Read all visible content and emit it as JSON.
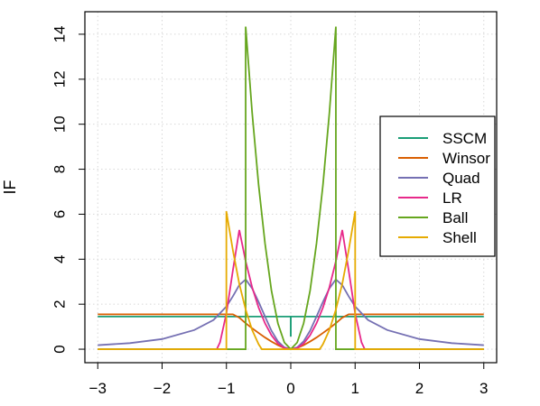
{
  "chart_data": {
    "type": "line",
    "title": "",
    "xlabel": "",
    "ylabel": "IF",
    "xlim": [
      -3.2,
      3.2
    ],
    "ylim": [
      -0.6,
      15
    ],
    "grid": true,
    "legend_position": "right",
    "x_ticks": [
      -3,
      -2,
      -1,
      0,
      1,
      2,
      3
    ],
    "y_ticks": [
      0,
      2,
      4,
      6,
      8,
      10,
      12,
      14
    ],
    "x_tick_labels": [
      "−3",
      "−2",
      "−1",
      "0",
      "1",
      "2",
      "3"
    ],
    "y_tick_labels": [
      "0",
      "2",
      "4",
      "6",
      "8",
      "10",
      "12",
      "14"
    ],
    "series": [
      {
        "name": "SSCM",
        "color": "#1b9e77",
        "x": [
          -3,
          -0.001,
          -0.001,
          0.001,
          0.001,
          3
        ],
        "y": [
          1.45,
          1.45,
          0.6,
          0.6,
          1.45,
          1.45
        ]
      },
      {
        "name": "Winsor",
        "color": "#d95f02",
        "x": [
          -3,
          -2,
          -1.5,
          -1.2,
          -1,
          -0.9,
          -0.8,
          -0.7,
          -0.6,
          -0.5,
          -0.4,
          -0.3,
          -0.2,
          -0.1,
          0,
          0.1,
          0.2,
          0.3,
          0.4,
          0.5,
          0.6,
          0.7,
          0.8,
          0.9,
          1,
          1.2,
          1.5,
          2,
          3
        ],
        "y": [
          1.55,
          1.55,
          1.55,
          1.55,
          1.55,
          1.55,
          1.4,
          1.15,
          0.93,
          0.72,
          0.52,
          0.34,
          0.18,
          0.05,
          0.0,
          0.05,
          0.18,
          0.34,
          0.52,
          0.72,
          0.93,
          1.15,
          1.4,
          1.55,
          1.55,
          1.55,
          1.55,
          1.55,
          1.55
        ]
      },
      {
        "name": "Quad",
        "color": "#7570b3",
        "x": [
          -3,
          -2.5,
          -2,
          -1.5,
          -1.2,
          -1,
          -0.9,
          -0.8,
          -0.7,
          -0.6,
          -0.5,
          -0.4,
          -0.3,
          -0.2,
          -0.1,
          0,
          0.1,
          0.2,
          0.3,
          0.4,
          0.5,
          0.6,
          0.7,
          0.8,
          0.9,
          1,
          1.2,
          1.5,
          2,
          2.5,
          3
        ],
        "y": [
          0.18,
          0.27,
          0.45,
          0.85,
          1.3,
          1.9,
          2.35,
          2.85,
          3.1,
          2.7,
          2.1,
          1.45,
          0.82,
          0.35,
          0.08,
          0.0,
          0.08,
          0.35,
          0.82,
          1.45,
          2.1,
          2.7,
          3.1,
          2.85,
          2.35,
          1.9,
          1.3,
          0.85,
          0.45,
          0.27,
          0.18
        ]
      },
      {
        "name": "LR",
        "color": "#e7298a",
        "x": [
          -3,
          -1.15,
          -1.1,
          -1.0,
          -0.9,
          -0.8,
          -0.7,
          -0.6,
          -0.5,
          -0.4,
          -0.3,
          -0.2,
          -0.1,
          0,
          0.1,
          0.2,
          0.3,
          0.4,
          0.5,
          0.6,
          0.7,
          0.8,
          0.9,
          1.0,
          1.1,
          1.15,
          3
        ],
        "y": [
          0.0,
          0.0,
          0.3,
          1.6,
          3.5,
          5.3,
          3.9,
          2.75,
          1.85,
          1.15,
          0.62,
          0.25,
          0.05,
          0.0,
          0.05,
          0.25,
          0.62,
          1.15,
          1.85,
          2.75,
          3.9,
          5.3,
          3.5,
          1.6,
          0.3,
          0.0,
          0.0
        ]
      },
      {
        "name": "Ball",
        "color": "#66a61e",
        "x": [
          -3,
          -0.701,
          -0.701,
          -0.7,
          -0.6,
          -0.5,
          -0.4,
          -0.3,
          -0.2,
          -0.1,
          0,
          0.1,
          0.2,
          0.3,
          0.4,
          0.5,
          0.6,
          0.7,
          0.701,
          0.701,
          3
        ],
        "y": [
          0.0,
          0.0,
          14.3,
          14.3,
          10.5,
          7.3,
          4.7,
          2.6,
          1.15,
          0.3,
          0.0,
          0.3,
          1.15,
          2.6,
          4.7,
          7.3,
          10.5,
          14.3,
          14.3,
          0.0,
          0.0
        ]
      },
      {
        "name": "Shell",
        "color": "#e6ab02",
        "x": [
          -3,
          -1.001,
          -1.001,
          -1.0,
          -0.9,
          -0.8,
          -0.7,
          -0.6,
          -0.5,
          -0.45,
          -0.45,
          0.45,
          0.45,
          0.5,
          0.6,
          0.7,
          0.8,
          0.9,
          1.0,
          1.001,
          1.001,
          3
        ],
        "y": [
          0.0,
          0.0,
          6.1,
          6.1,
          4.4,
          2.9,
          1.75,
          0.85,
          0.22,
          0.0,
          0.0,
          0.0,
          0.0,
          0.22,
          0.85,
          1.75,
          2.9,
          4.4,
          6.1,
          6.1,
          0.0,
          0.0
        ]
      }
    ]
  }
}
